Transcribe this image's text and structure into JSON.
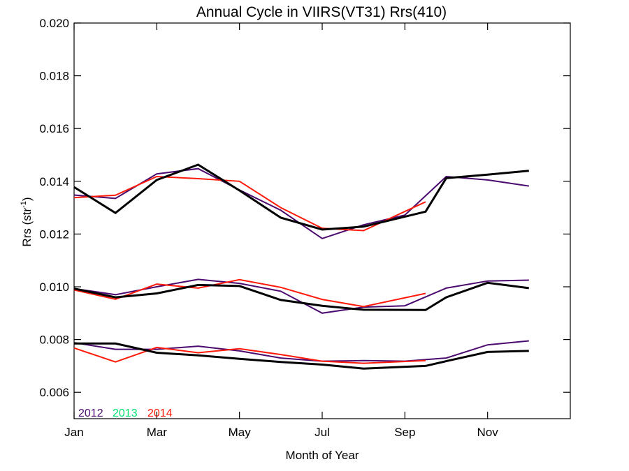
{
  "chart_data": {
    "type": "line",
    "title": "Annual Cycle in VIIRS(VT31) Rrs(410)",
    "xlabel": "Month of Year",
    "ylabel_main": "Rrs (str",
    "ylabel_sup": "-1",
    "ylabel_close": ")",
    "xlim": [
      0,
      12
    ],
    "ylim": [
      0.005,
      0.02
    ],
    "xticks": [
      {
        "value": 0,
        "label": "Jan"
      },
      {
        "value": 2,
        "label": "Mar"
      },
      {
        "value": 4,
        "label": "May"
      },
      {
        "value": 6,
        "label": "Jul"
      },
      {
        "value": 8,
        "label": "Sep"
      },
      {
        "value": 10,
        "label": "Nov"
      }
    ],
    "yticks": [
      {
        "value": 0.006,
        "label": "0.006"
      },
      {
        "value": 0.008,
        "label": "0.008"
      },
      {
        "value": 0.01,
        "label": "0.010"
      },
      {
        "value": 0.012,
        "label": "0.012"
      },
      {
        "value": 0.014,
        "label": "0.014"
      },
      {
        "value": 0.016,
        "label": "0.016"
      },
      {
        "value": 0.018,
        "label": "0.018"
      },
      {
        "value": 0.02,
        "label": "0.020"
      }
    ],
    "legend": [
      {
        "name": "2012",
        "color": "#4b0a6e"
      },
      {
        "name": "2013",
        "color": "#00e070"
      },
      {
        "name": "2014",
        "color": "#ff1a0a"
      }
    ],
    "legend_placement": "bottom-left",
    "series": [
      {
        "name": "2012",
        "color": "#4b0a6e",
        "width": 2,
        "x": [
          0,
          1,
          2,
          3,
          4,
          5,
          6,
          7,
          8,
          9,
          10,
          11
        ],
        "values": [
          0.01348,
          0.01335,
          0.01428,
          0.01448,
          0.01367,
          0.0129,
          0.01183,
          0.01235,
          0.01272,
          0.01418,
          0.01405,
          0.01382
        ]
      },
      {
        "name": "2014",
        "color": "#ff1a0a",
        "width": 2,
        "x": [
          0,
          1,
          2,
          3,
          4,
          5,
          6,
          7,
          8.5
        ],
        "values": [
          0.01338,
          0.01347,
          0.01418,
          0.0141,
          0.014,
          0.013,
          0.01222,
          0.01213,
          0.01322
        ]
      },
      {
        "name": "",
        "color": "#000000",
        "width": 3,
        "x": [
          0,
          1,
          2,
          3,
          4,
          5,
          6,
          7,
          8.5,
          9,
          10,
          11
        ],
        "values": [
          0.01378,
          0.0128,
          0.01405,
          0.01463,
          0.01365,
          0.01262,
          0.01217,
          0.01228,
          0.01285,
          0.01412,
          0.01425,
          0.0144
        ]
      },
      {
        "name": "2012",
        "color": "#4b0a6e",
        "width": 2,
        "x": [
          0,
          1,
          2,
          3,
          4,
          5,
          6,
          7,
          8,
          9,
          10,
          11
        ],
        "values": [
          0.00993,
          0.0097,
          0.01,
          0.01028,
          0.01013,
          0.00983,
          0.009,
          0.00923,
          0.00928,
          0.00995,
          0.01022,
          0.01025
        ]
      },
      {
        "name": "2014",
        "color": "#ff1a0a",
        "width": 2,
        "x": [
          0,
          1,
          2,
          3,
          4,
          5,
          6,
          7,
          8.5
        ],
        "values": [
          0.00988,
          0.00953,
          0.0101,
          0.00995,
          0.01027,
          0.00998,
          0.00952,
          0.00925,
          0.00975
        ]
      },
      {
        "name": "",
        "color": "#000000",
        "width": 3,
        "x": [
          0,
          1,
          2,
          3,
          4,
          5,
          6,
          7,
          8.5,
          9,
          10,
          11
        ],
        "values": [
          0.00993,
          0.0096,
          0.00975,
          0.01007,
          0.01003,
          0.0095,
          0.00928,
          0.00913,
          0.00912,
          0.0096,
          0.01015,
          0.00995
        ]
      },
      {
        "name": "2012",
        "color": "#4b0a6e",
        "width": 2,
        "x": [
          0,
          1,
          2,
          3,
          4,
          5,
          6,
          7,
          8,
          9,
          10,
          11
        ],
        "values": [
          0.00788,
          0.00763,
          0.00763,
          0.00775,
          0.00757,
          0.0073,
          0.00718,
          0.0072,
          0.00718,
          0.0073,
          0.0078,
          0.00795
        ]
      },
      {
        "name": "2014",
        "color": "#ff1a0a",
        "width": 2,
        "x": [
          0,
          1,
          2,
          3,
          4,
          5,
          6,
          7,
          8.5
        ],
        "values": [
          0.00768,
          0.00715,
          0.0077,
          0.0075,
          0.00765,
          0.00743,
          0.00718,
          0.0071,
          0.0072
        ]
      },
      {
        "name": "",
        "color": "#000000",
        "width": 3,
        "x": [
          0,
          1,
          2,
          3,
          4,
          5,
          6,
          7,
          8.5,
          9,
          10,
          11
        ],
        "values": [
          0.00785,
          0.00785,
          0.0075,
          0.0074,
          0.00727,
          0.00715,
          0.00705,
          0.0069,
          0.007,
          0.00718,
          0.00753,
          0.00757
        ]
      }
    ]
  }
}
